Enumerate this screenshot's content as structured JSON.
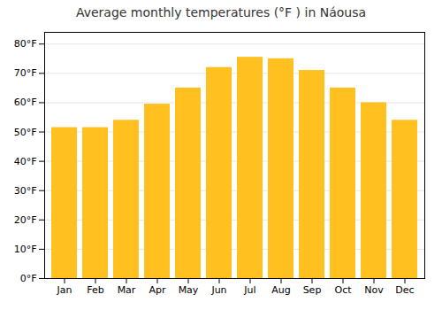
{
  "chart_data": {
    "type": "bar",
    "title": "Average monthly temperatures (°F ) in Náousa",
    "categories": [
      "Jan",
      "Feb",
      "Mar",
      "Apr",
      "May",
      "Jun",
      "Jul",
      "Aug",
      "Sep",
      "Oct",
      "Nov",
      "Dec"
    ],
    "values": [
      51.5,
      51.5,
      54,
      59.5,
      65,
      72,
      75.5,
      75,
      71,
      65,
      60,
      54
    ],
    "color": "#FFC020",
    "ylim": [
      0,
      84
    ],
    "yticks": [
      {
        "value": 0,
        "label": "0°F"
      },
      {
        "value": 10,
        "label": "10°F"
      },
      {
        "value": 20,
        "label": "20°F"
      },
      {
        "value": 30,
        "label": "30°F"
      },
      {
        "value": 40,
        "label": "40°F"
      },
      {
        "value": 50,
        "label": "50°F"
      },
      {
        "value": 60,
        "label": "60°F"
      },
      {
        "value": 70,
        "label": "70°F"
      },
      {
        "value": 80,
        "label": "80°F"
      }
    ],
    "grid": true
  }
}
